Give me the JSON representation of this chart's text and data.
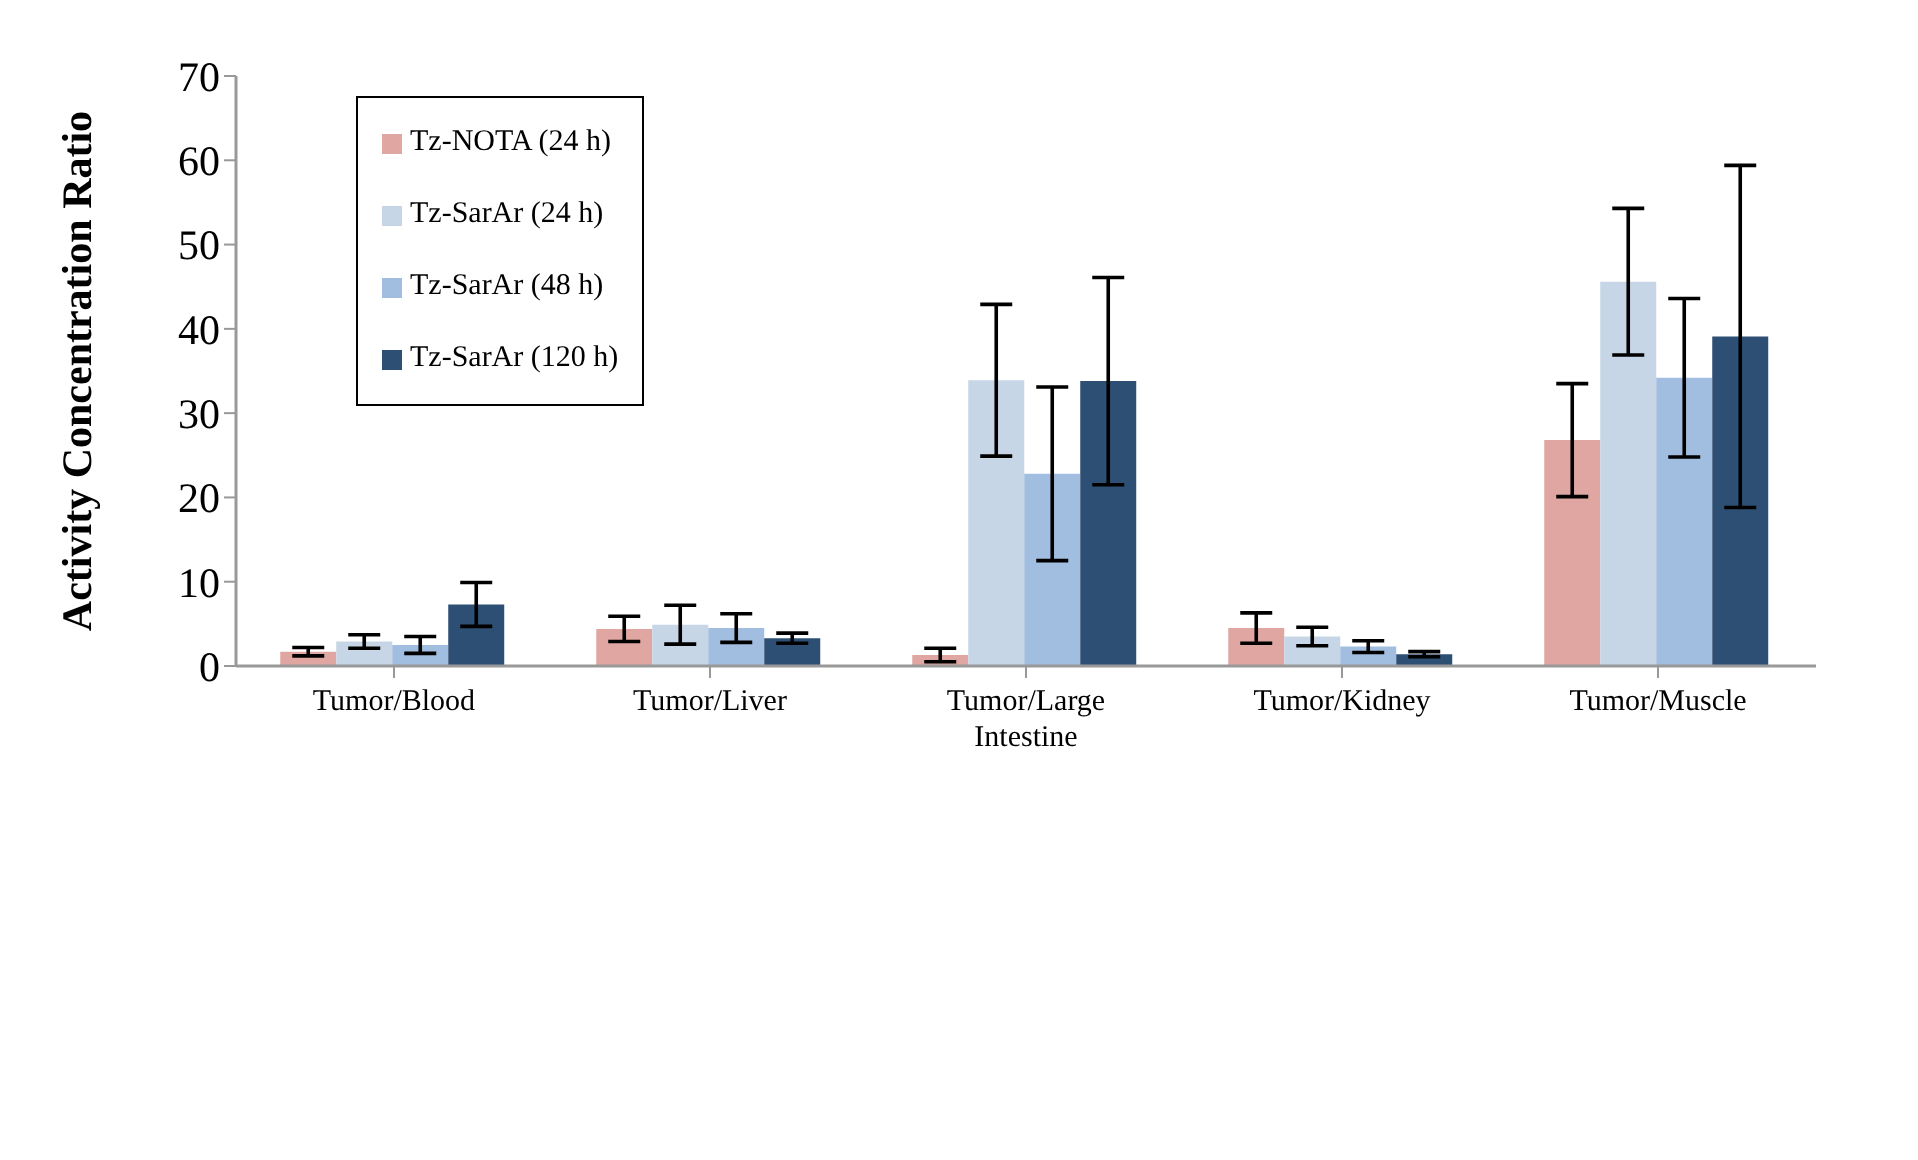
{
  "chart_data": {
    "type": "bar",
    "ylabel": "Activity Concentration Ratio",
    "categories": [
      "Tumor/Blood",
      "Tumor/Liver",
      "Tumor/Large Intestine",
      "Tumor/Kidney",
      "Tumor/Muscle"
    ],
    "series": [
      {
        "name": "Tz-NOTA (24 h)",
        "color": "#e0a7a2",
        "values": [
          1.7,
          4.4,
          1.3,
          4.5,
          26.8
        ],
        "errors": [
          0.5,
          1.5,
          0.8,
          1.8,
          6.7
        ]
      },
      {
        "name": "Tz-SarAr (24 h)",
        "color": "#c6d6e7",
        "values": [
          2.9,
          4.9,
          33.9,
          3.5,
          45.6
        ],
        "errors": [
          0.8,
          2.3,
          9.0,
          1.1,
          8.7
        ]
      },
      {
        "name": "Tz-SarAr (48 h)",
        "color": "#a1bddf",
        "values": [
          2.5,
          4.5,
          22.8,
          2.3,
          34.2
        ],
        "errors": [
          1.0,
          1.7,
          10.3,
          0.7,
          9.4
        ]
      },
      {
        "name": "Tz-SarAr (120 h)",
        "color": "#2e4f74",
        "values": [
          7.3,
          3.3,
          33.8,
          1.4,
          39.1
        ],
        "errors": [
          2.6,
          0.6,
          12.3,
          0.3,
          20.3
        ]
      }
    ],
    "ylim": [
      0,
      70
    ],
    "yticks": [
      0,
      10,
      20,
      30,
      40,
      50,
      60,
      70
    ],
    "grid": false,
    "legend": "top left"
  }
}
